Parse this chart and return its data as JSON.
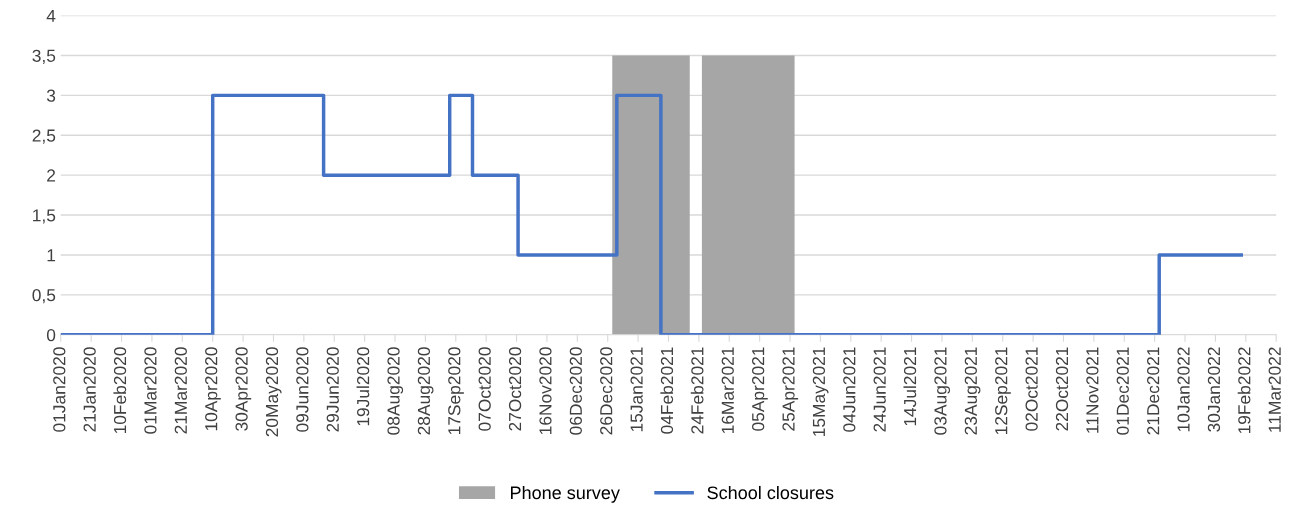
{
  "chart_data": {
    "type": "step",
    "series": [
      {
        "name": "Phone survey",
        "type": "area",
        "color": "#a6a6a6",
        "x": [
          "2020-12-29",
          "2021-02-18",
          "2021-02-22",
          "2021-02-26",
          "2021-04-28"
        ],
        "values": [
          3.5,
          3.5,
          null,
          3.5,
          3.5
        ]
      },
      {
        "name": "School closures",
        "color": "#4472c4",
        "x": [
          "2020-01-01",
          "2020-04-10",
          "2020-06-22",
          "2020-09-13",
          "2020-09-28",
          "2020-10-28",
          "2021-01-01",
          "2021-01-30",
          "2021-12-24",
          "2022-02-16"
        ],
        "values": [
          0,
          3,
          2,
          3,
          2,
          1,
          3,
          0,
          1,
          1
        ]
      }
    ],
    "xlim": [
      "2020-01-01",
      "2022-03-11"
    ],
    "xticks": [
      {
        "value": "2020-01-01",
        "label": "01Jan2020"
      },
      {
        "value": "2020-01-21",
        "label": "21Jan2020"
      },
      {
        "value": "2020-02-10",
        "label": "10Feb2020"
      },
      {
        "value": "2020-03-01",
        "label": "01Mar2020"
      },
      {
        "value": "2020-03-21",
        "label": "21Mar2020"
      },
      {
        "value": "2020-04-10",
        "label": "10Apr2020"
      },
      {
        "value": "2020-04-30",
        "label": "30Apr2020"
      },
      {
        "value": "2020-05-20",
        "label": "20May2020"
      },
      {
        "value": "2020-06-09",
        "label": "09Jun2020"
      },
      {
        "value": "2020-06-29",
        "label": "29Jun2020"
      },
      {
        "value": "2020-07-19",
        "label": "19Jul2020"
      },
      {
        "value": "2020-08-08",
        "label": "08Aug2020"
      },
      {
        "value": "2020-08-28",
        "label": "28Aug2020"
      },
      {
        "value": "2020-09-17",
        "label": "17Sep2020"
      },
      {
        "value": "2020-10-07",
        "label": "07Oct2020"
      },
      {
        "value": "2020-10-27",
        "label": "27Oct2020"
      },
      {
        "value": "2020-11-16",
        "label": "16Nov2020"
      },
      {
        "value": "2020-12-06",
        "label": "06Dec2020"
      },
      {
        "value": "2020-12-26",
        "label": "26Dec2020"
      },
      {
        "value": "2021-01-15",
        "label": "15Jan2021"
      },
      {
        "value": "2021-02-04",
        "label": "04Feb2021"
      },
      {
        "value": "2021-02-24",
        "label": "24Feb2021"
      },
      {
        "value": "2021-03-16",
        "label": "16Mar2021"
      },
      {
        "value": "2021-04-05",
        "label": "05Apr2021"
      },
      {
        "value": "2021-04-25",
        "label": "25Apr2021"
      },
      {
        "value": "2021-05-15",
        "label": "15May2021"
      },
      {
        "value": "2021-06-04",
        "label": "04Jun2021"
      },
      {
        "value": "2021-06-24",
        "label": "24Jun2021"
      },
      {
        "value": "2021-07-14",
        "label": "14Jul2021"
      },
      {
        "value": "2021-08-03",
        "label": "03Aug2021"
      },
      {
        "value": "2021-08-23",
        "label": "23Aug2021"
      },
      {
        "value": "2021-09-12",
        "label": "12Sep2021"
      },
      {
        "value": "2021-10-02",
        "label": "02Oct2021"
      },
      {
        "value": "2021-10-22",
        "label": "22Oct2021"
      },
      {
        "value": "2021-11-11",
        "label": "11Nov2021"
      },
      {
        "value": "2021-12-01",
        "label": "01Dec2021"
      },
      {
        "value": "2021-12-21",
        "label": "21Dec2021"
      },
      {
        "value": "2022-01-10",
        "label": "10Jan2022"
      },
      {
        "value": "2022-01-30",
        "label": "30Jan2022"
      },
      {
        "value": "2022-02-19",
        "label": "19Feb2022"
      },
      {
        "value": "2022-03-11",
        "label": "11Mar2022"
      }
    ],
    "ylim": [
      0,
      4
    ],
    "yticks": [
      0,
      {
        "value": 0.5,
        "label": "0,5"
      },
      1,
      {
        "value": 1.5,
        "label": "1,5"
      },
      2,
      {
        "value": 2.5,
        "label": "2,5"
      },
      3,
      {
        "value": 3.5,
        "label": "3,5"
      },
      4
    ],
    "grid": "y",
    "legend": "bottom",
    "line_style": "solid",
    "marker": "none"
  }
}
